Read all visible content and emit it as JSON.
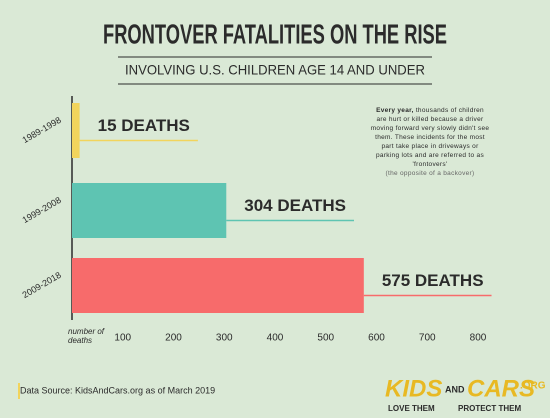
{
  "chart_data": {
    "type": "hbar",
    "title": "FRONTOVER FATALITIES ON THE RISE",
    "subtitle": "INVOLVING U.S. CHILDREN AGE 14 AND UNDER",
    "categories": [
      "1989-1998",
      "1999-2008",
      "2009-2018"
    ],
    "values": [
      15,
      304,
      575
    ],
    "value_labels": [
      "15 DEATHS",
      "304 DEATHS",
      "575 DEATHS"
    ],
    "colors": [
      "#f2d45c",
      "#5ec4b2",
      "#f76b6b"
    ],
    "xlabel": "number of deaths",
    "xlim": [
      0,
      800
    ],
    "xticks": [
      100,
      200,
      300,
      400,
      500,
      600,
      700,
      800
    ],
    "annotation": {
      "lead": "Every year,",
      "text": "thousands of children are hurt or killed because a driver moving forward very slowly didn't see them. These incidents for the most part take place in driveways or parking lots and are referred to as 'frontovers'",
      "note": "(the opposite of a backover)"
    },
    "source": "Data Source: KidsAndCars.org as of March 2019",
    "logo": {
      "kids": "KIDS",
      "and": "AND",
      "cars": "CARS",
      "org": ".ORG",
      "slogan_left": "LOVE THEM",
      "slogan_right": "PROTECT THEM"
    }
  }
}
